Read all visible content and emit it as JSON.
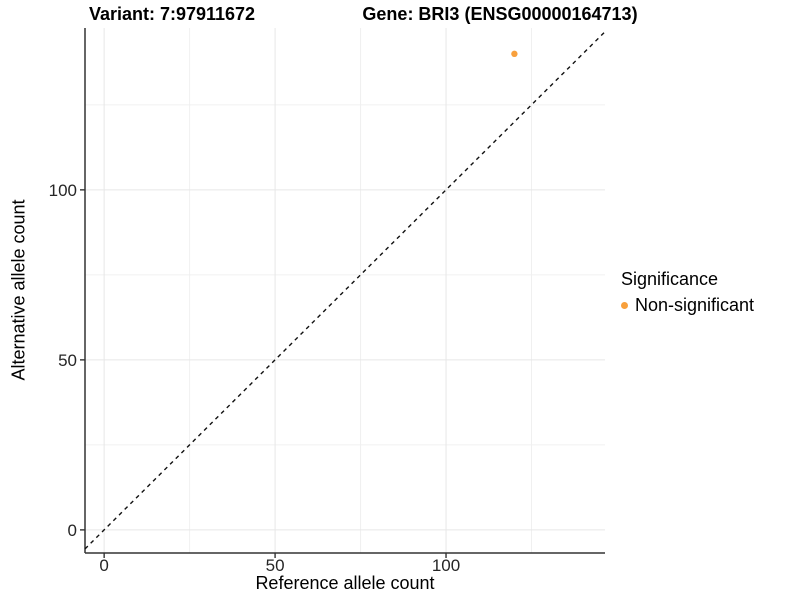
{
  "chart_data": {
    "type": "scatter",
    "titles": {
      "left": "Variant: 7:97911672",
      "right": "Gene: BRI3 (ENSG00000164713)"
    },
    "xlabel": "Reference allele count",
    "ylabel": "Alternative allele count",
    "x_ticks": [
      0,
      50,
      100
    ],
    "y_ticks": [
      0,
      50,
      100
    ],
    "xlim": [
      -5.6,
      146.5
    ],
    "ylim": [
      -6.8,
      147.6
    ],
    "grid": true,
    "points": [
      {
        "x": 120,
        "y": 140,
        "series": "Non-significant"
      }
    ],
    "series_colors": {
      "Non-significant": "#F8A03C"
    },
    "identity_line": {
      "style": "dashed",
      "color": "#111111"
    },
    "legend": {
      "title": "Significance",
      "position": "right",
      "items": [
        {
          "label": "Non-significant",
          "color": "#F8A03C"
        }
      ]
    },
    "colors": {
      "grid_major": "#E7E7E7",
      "grid_minor": "#F0F0F0",
      "axis_line": "#333333",
      "tick_mark": "#333333",
      "tick_text": "#262626",
      "background": "#FFFFFF"
    }
  }
}
